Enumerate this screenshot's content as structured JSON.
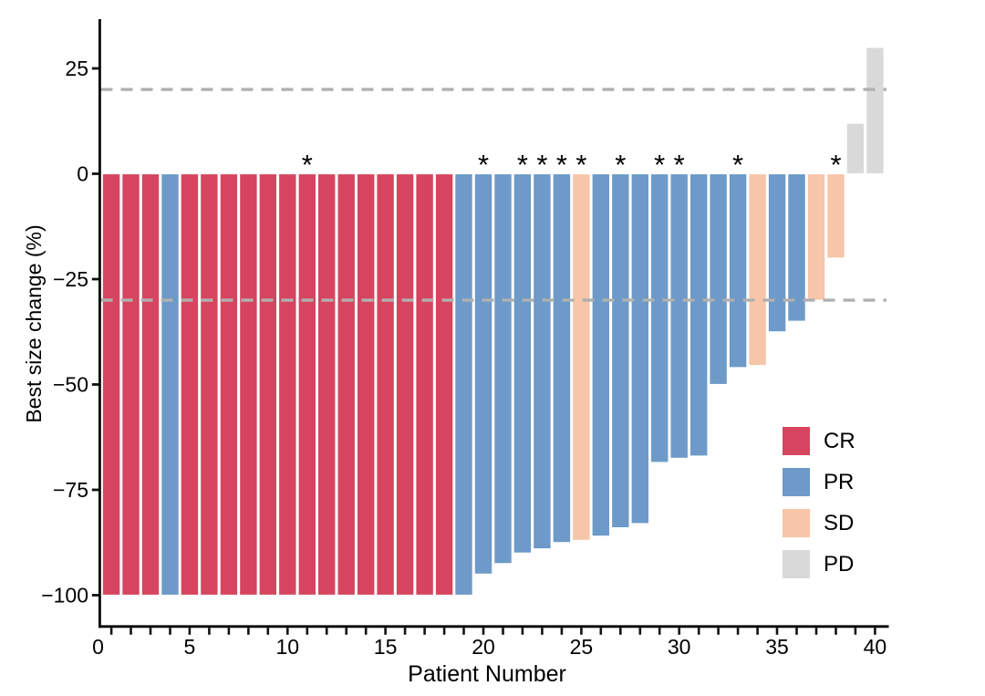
{
  "chart_data": {
    "type": "bar",
    "variant": "waterfall",
    "title": "",
    "xlabel": "Patient Number",
    "ylabel": "Best size change (%)",
    "xlim": [
      0,
      41.5
    ],
    "ylim": [
      -107,
      36
    ],
    "grid": false,
    "x_major_ticks": [
      0,
      5,
      10,
      15,
      20,
      25,
      30,
      35,
      40
    ],
    "x_tick_labels": [
      "0",
      "5",
      "10",
      "15",
      "20",
      "25",
      "30",
      "35",
      "40"
    ],
    "x_minor_tick_interval": 1,
    "y_ticks": [
      25,
      0,
      -25,
      -50,
      -75,
      -100
    ],
    "y_tick_labels": [
      "25",
      "0",
      "−25",
      "−50",
      "−75",
      "−100"
    ],
    "reference_lines": [
      {
        "y": 20,
        "style": "dashed",
        "color": "#B0B0B0"
      },
      {
        "y": -30,
        "style": "dashed",
        "color": "#B0B0B0"
      }
    ],
    "annotation_symbol": "*",
    "legend": {
      "position": "right-middle",
      "entries": [
        {
          "label": "CR",
          "color": "#D6455F"
        },
        {
          "label": "PR",
          "color": "#6D9AC8"
        },
        {
          "label": "SD",
          "color": "#F7C5A8"
        },
        {
          "label": "PD",
          "color": "#D9D9D9"
        }
      ]
    },
    "bars": [
      {
        "patient": 1,
        "value": -100,
        "response": "CR",
        "asterisk": false
      },
      {
        "patient": 2,
        "value": -100,
        "response": "CR",
        "asterisk": false
      },
      {
        "patient": 3,
        "value": -100,
        "response": "CR",
        "asterisk": false
      },
      {
        "patient": 4,
        "value": -100,
        "response": "PR",
        "asterisk": false
      },
      {
        "patient": 5,
        "value": -100,
        "response": "CR",
        "asterisk": false
      },
      {
        "patient": 6,
        "value": -100,
        "response": "CR",
        "asterisk": false
      },
      {
        "patient": 7,
        "value": -100,
        "response": "CR",
        "asterisk": false
      },
      {
        "patient": 8,
        "value": -100,
        "response": "CR",
        "asterisk": false
      },
      {
        "patient": 9,
        "value": -100,
        "response": "CR",
        "asterisk": false
      },
      {
        "patient": 10,
        "value": -100,
        "response": "CR",
        "asterisk": false
      },
      {
        "patient": 11,
        "value": -100,
        "response": "CR",
        "asterisk": true
      },
      {
        "patient": 12,
        "value": -100,
        "response": "CR",
        "asterisk": false
      },
      {
        "patient": 13,
        "value": -100,
        "response": "CR",
        "asterisk": false
      },
      {
        "patient": 14,
        "value": -100,
        "response": "CR",
        "asterisk": false
      },
      {
        "patient": 15,
        "value": -100,
        "response": "CR",
        "asterisk": false
      },
      {
        "patient": 16,
        "value": -100,
        "response": "CR",
        "asterisk": false
      },
      {
        "patient": 17,
        "value": -100,
        "response": "CR",
        "asterisk": false
      },
      {
        "patient": 18,
        "value": -100,
        "response": "CR",
        "asterisk": false
      },
      {
        "patient": 19,
        "value": -100,
        "response": "PR",
        "asterisk": false
      },
      {
        "patient": 20,
        "value": -95,
        "response": "PR",
        "asterisk": true
      },
      {
        "patient": 21,
        "value": -92.5,
        "response": "PR",
        "asterisk": false
      },
      {
        "patient": 22,
        "value": -90,
        "response": "PR",
        "asterisk": true
      },
      {
        "patient": 23,
        "value": -89,
        "response": "PR",
        "asterisk": true
      },
      {
        "patient": 24,
        "value": -87.5,
        "response": "PR",
        "asterisk": true
      },
      {
        "patient": 25,
        "value": -87,
        "response": "SD",
        "asterisk": true
      },
      {
        "patient": 26,
        "value": -86,
        "response": "PR",
        "asterisk": false
      },
      {
        "patient": 27,
        "value": -84,
        "response": "PR",
        "asterisk": true
      },
      {
        "patient": 28,
        "value": -83,
        "response": "PR",
        "asterisk": false
      },
      {
        "patient": 29,
        "value": -68.5,
        "response": "PR",
        "asterisk": true
      },
      {
        "patient": 30,
        "value": -67.5,
        "response": "PR",
        "asterisk": true
      },
      {
        "patient": 31,
        "value": -67,
        "response": "PR",
        "asterisk": false
      },
      {
        "patient": 32,
        "value": -50,
        "response": "PR",
        "asterisk": false
      },
      {
        "patient": 33,
        "value": -46,
        "response": "PR",
        "asterisk": true
      },
      {
        "patient": 34,
        "value": -45.5,
        "response": "SD",
        "asterisk": false
      },
      {
        "patient": 35,
        "value": -37.5,
        "response": "PR",
        "asterisk": false
      },
      {
        "patient": 36,
        "value": -35,
        "response": "PR",
        "asterisk": false
      },
      {
        "patient": 37,
        "value": -30,
        "response": "SD",
        "asterisk": false
      },
      {
        "patient": 38,
        "value": -20,
        "response": "SD",
        "asterisk": true
      },
      {
        "patient": 39,
        "value": 12,
        "response": "PD",
        "asterisk": false
      },
      {
        "patient": 40,
        "value": 30,
        "response": "PD",
        "asterisk": false
      }
    ]
  }
}
